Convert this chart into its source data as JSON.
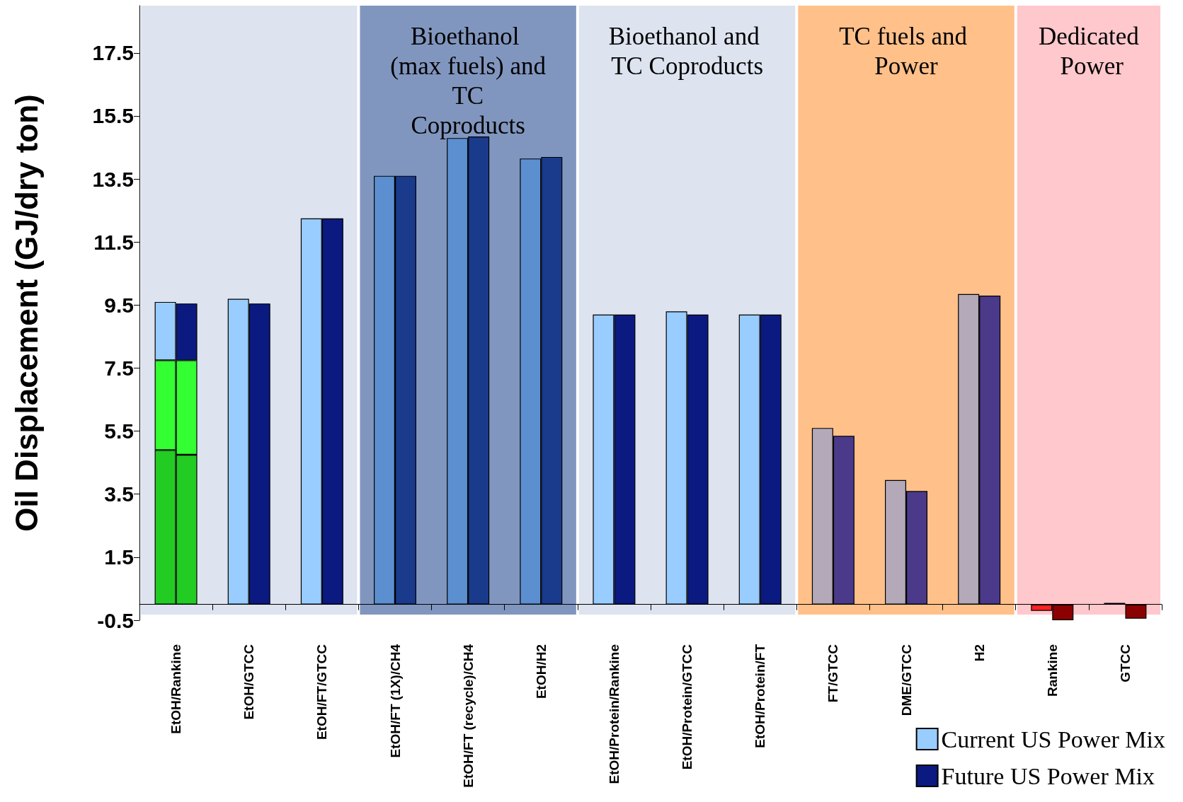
{
  "chart_data": {
    "type": "bar",
    "ylabel": "Oil Displacement (GJ/dry ton)",
    "categories": [
      "EtOH/Rankine",
      "EtOH/GTCC",
      "EtOH/FT/GTCC",
      "EtOH/FT (1X)/CH4",
      "EtOH/FT (recycle)/CH4",
      "EtOH/H2",
      "EtOH/Protein/Rankine",
      "EtOH/Protein/GTCC",
      "EtOH/Protein/FT",
      "FT/GTCC",
      "DME/GTCC",
      "H2",
      "Rankine",
      "GTCC"
    ],
    "series": [
      {
        "color": "#22cc22",
        "values": [
          4.9,
          null,
          null,
          null,
          null,
          null,
          null,
          null,
          null,
          null,
          null,
          null,
          null,
          null
        ],
        "base": [
          0,
          null,
          null,
          null,
          null,
          null,
          null,
          null,
          null,
          null,
          null,
          null,
          null,
          null
        ]
      },
      {
        "color": "#33ff33",
        "values": [
          2.85,
          null,
          null,
          null,
          null,
          null,
          null,
          null,
          null,
          null,
          null,
          null,
          null,
          null
        ],
        "base": [
          4.9,
          null,
          null,
          null,
          null,
          null,
          null,
          null,
          null,
          null,
          null,
          null,
          null,
          null
        ]
      },
      {
        "name": "Current US Power Mix",
        "color": "#99ccff",
        "colors": [
          "#99ccff",
          "#99ccff",
          "#99ccff",
          "#5b8fd0",
          "#5b8fd0",
          "#5b8fd0",
          "#99ccff",
          "#99ccff",
          "#99ccff",
          "#b4a9b8",
          "#b4a9b8",
          "#b4a9b8",
          "#ff2020",
          "#ff2020"
        ],
        "values": [
          1.85,
          9.7,
          12.25,
          13.6,
          14.8,
          14.15,
          9.2,
          9.3,
          9.2,
          5.6,
          3.95,
          9.85,
          -0.2,
          0.05
        ],
        "base": [
          7.75,
          0,
          0,
          0,
          0,
          0,
          0,
          0,
          0,
          0,
          0,
          0,
          0,
          0
        ]
      },
      {
        "color": "#22cc22",
        "values": [
          4.75,
          null,
          null,
          null,
          null,
          null,
          null,
          null,
          null,
          null,
          null,
          null,
          null,
          null
        ],
        "base": [
          0,
          null,
          null,
          null,
          null,
          null,
          null,
          null,
          null,
          null,
          null,
          null,
          null,
          null
        ]
      },
      {
        "color": "#33ff33",
        "values": [
          3.0,
          null,
          null,
          null,
          null,
          null,
          null,
          null,
          null,
          null,
          null,
          null,
          null,
          null
        ],
        "base": [
          4.75,
          null,
          null,
          null,
          null,
          null,
          null,
          null,
          null,
          null,
          null,
          null,
          null,
          null
        ]
      },
      {
        "name": "Future US Power Mix",
        "color": "#0b1a80",
        "colors": [
          "#0b1a80",
          "#0b1a80",
          "#0b1a80",
          "#1a3a8c",
          "#1a3a8c",
          "#1a3a8c",
          "#0b1a80",
          "#0b1a80",
          "#0b1a80",
          "#4b3a8a",
          "#4b3a8a",
          "#4b3a8a",
          "#8b0000",
          "#8b0000"
        ],
        "values": [
          1.8,
          9.55,
          12.25,
          13.6,
          14.85,
          14.2,
          9.2,
          9.2,
          9.2,
          5.35,
          3.6,
          9.8,
          -0.5,
          -0.45
        ],
        "base": [
          7.75,
          0,
          0,
          0,
          0,
          0,
          0,
          0,
          0,
          0,
          0,
          0,
          0,
          0
        ]
      }
    ],
    "ylim": [
      -0.5,
      19
    ],
    "yticks": [
      -0.5,
      1.5,
      3.5,
      5.5,
      7.5,
      9.5,
      11.5,
      13.5,
      15.5,
      17.5
    ],
    "bands": [
      {
        "axis": "x",
        "from": "EtOH/Rankine",
        "to": "EtOH/FT/GTCC",
        "color": "#dde3ef"
      },
      {
        "axis": "x",
        "from": "EtOH/FT (1X)/CH4",
        "to": "EtOH/H2",
        "color": "#8196bf",
        "label": "Bioethanol (max fuels) and TC Coproducts"
      },
      {
        "axis": "x",
        "from": "EtOH/Protein/Rankine",
        "to": "EtOH/Protein/FT",
        "color": "#dde3ef",
        "label": "Bioethanol and TC Coproducts"
      },
      {
        "axis": "x",
        "from": "FT/GTCC",
        "to": "H2",
        "color": "#ffc08a",
        "label": "TC fuels and Power"
      },
      {
        "axis": "x",
        "from": "Rankine",
        "to": "GTCC",
        "color": "#ffc8cc",
        "label": "Dedicated Power"
      }
    ],
    "grid": false,
    "legend": "bottom right"
  }
}
